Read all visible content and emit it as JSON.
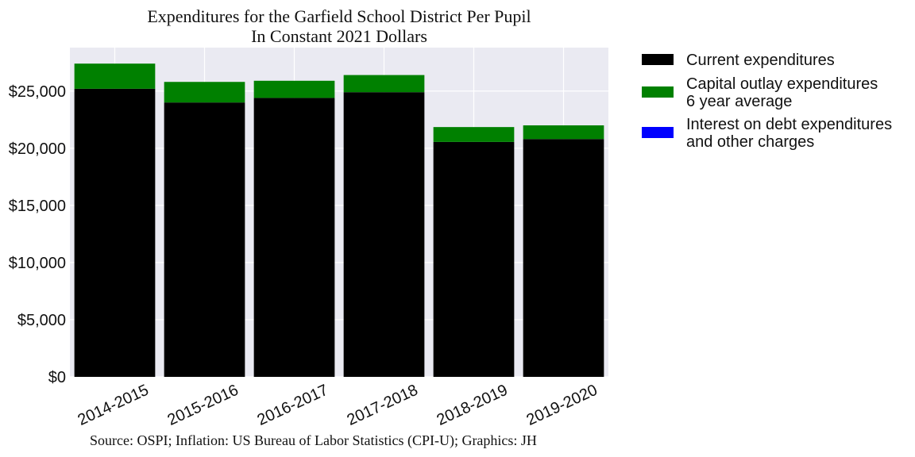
{
  "chart_data": {
    "type": "bar",
    "stacked": true,
    "title": [
      "Expenditures for the Garfield School District Per Pupil",
      "In Constant 2021 Dollars"
    ],
    "source": "Source: OSPI; Inflation: US Bureau of Labor Statistics (CPI-U); Graphics: JH",
    "categories": [
      "2014-2015",
      "2015-2016",
      "2016-2017",
      "2017-2018",
      "2018-2019",
      "2019-2020"
    ],
    "series": [
      {
        "name": [
          "Current expenditures"
        ],
        "color": "#000000",
        "values": [
          25200,
          24000,
          24400,
          24900,
          20550,
          20800
        ]
      },
      {
        "name": [
          "Capital outlay expenditures",
          "6 year average"
        ],
        "color": "#008000",
        "values": [
          2200,
          1800,
          1500,
          1500,
          1300,
          1200
        ]
      },
      {
        "name": [
          "Interest on debt expenditures",
          "and other charges"
        ],
        "color": "#0000ff",
        "values": [
          0,
          0,
          0,
          0,
          0,
          0
        ]
      }
    ],
    "y_ticks": [
      {
        "value": 0,
        "label": "$0"
      },
      {
        "value": 5000,
        "label": "$5,000"
      },
      {
        "value": 10000,
        "label": "$10,000"
      },
      {
        "value": 15000,
        "label": "$15,000"
      },
      {
        "value": 20000,
        "label": "$20,000"
      },
      {
        "value": 25000,
        "label": "$25,000"
      }
    ],
    "ylim": [
      0,
      28800
    ],
    "grid": true,
    "legend_position": "outside-right",
    "colors": {
      "plot_background": "#eaeaf2",
      "grid": "#ffffff"
    }
  }
}
